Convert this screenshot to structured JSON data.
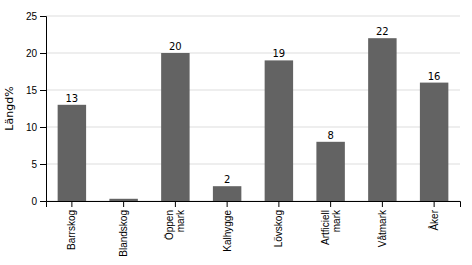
{
  "chart_data": {
    "type": "bar",
    "categories": [
      "Barrskog",
      "Blandskog",
      "Öppen\nmark",
      "Kalhygge",
      "Lövskog",
      "Artficiell\nmark",
      "Våtmark",
      "Åker"
    ],
    "values": [
      13,
      0.3,
      20,
      2,
      19,
      8,
      22,
      16
    ],
    "value_labels": [
      "13",
      null,
      "20",
      "2",
      "19",
      "8",
      "22",
      "16"
    ],
    "color": "#636363",
    "ylabel": "Längd%",
    "ylim": [
      0,
      25
    ],
    "yticks": [
      0,
      5,
      10,
      15,
      20,
      25
    ],
    "grid": true
  }
}
